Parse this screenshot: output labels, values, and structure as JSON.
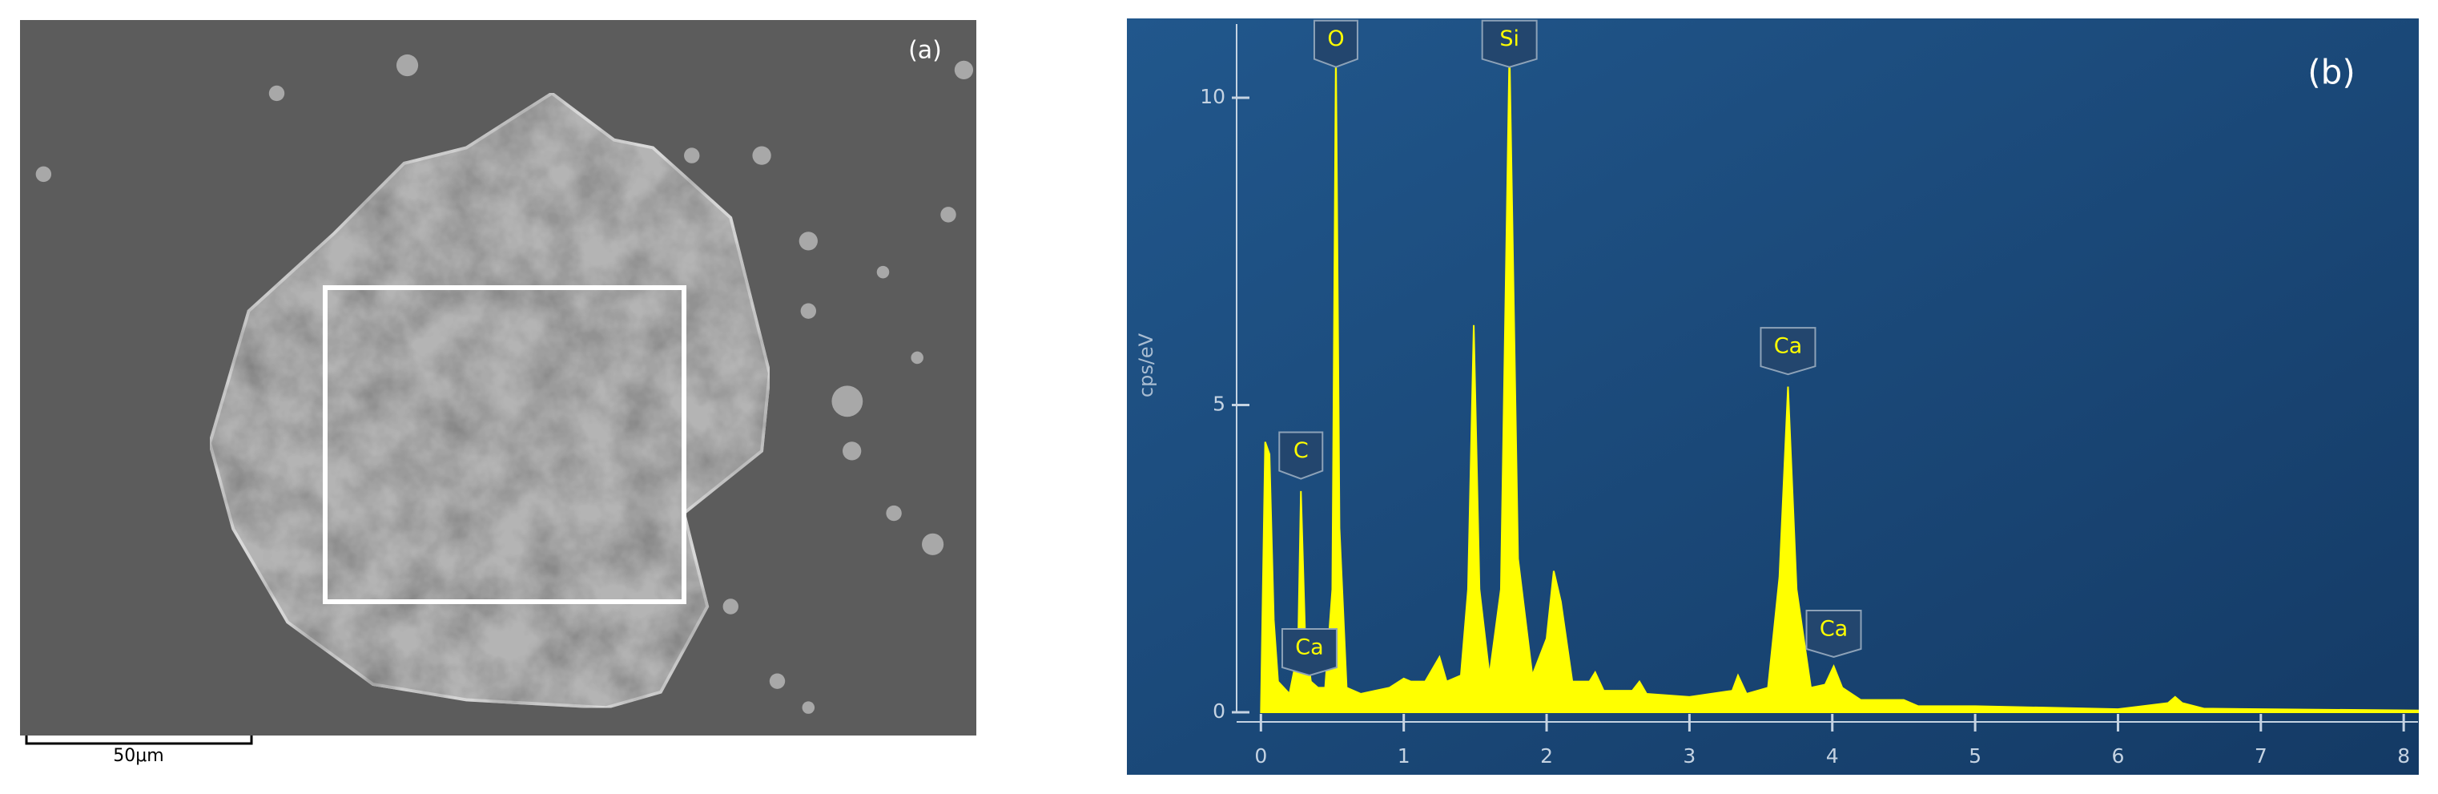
{
  "panel_a": {
    "label": "(a)",
    "scale_bar": "50μm"
  },
  "chart_data": {
    "type": "area",
    "panel_label": "(b)",
    "ylabel": "cps/eV",
    "color": "#ffff00",
    "xlim": [
      -0.17,
      8.1
    ],
    "ylim": [
      0,
      11.2
    ],
    "xticks": [
      0,
      1,
      2,
      3,
      4,
      5,
      6,
      7,
      8
    ],
    "yticks": [
      0,
      5,
      10
    ],
    "x": [
      0.0,
      0.03,
      0.06,
      0.09,
      0.12,
      0.2,
      0.26,
      0.28,
      0.31,
      0.35,
      0.4,
      0.45,
      0.5,
      0.525,
      0.55,
      0.6,
      0.7,
      0.8,
      0.9,
      1.0,
      1.05,
      1.15,
      1.25,
      1.3,
      1.4,
      1.45,
      1.49,
      1.53,
      1.6,
      1.68,
      1.74,
      1.8,
      1.9,
      2.0,
      2.05,
      2.1,
      2.18,
      2.3,
      2.34,
      2.4,
      2.6,
      2.65,
      2.7,
      3.0,
      3.3,
      3.34,
      3.4,
      3.55,
      3.63,
      3.69,
      3.75,
      3.85,
      3.95,
      4.01,
      4.07,
      4.2,
      4.5,
      4.6,
      5.0,
      6.0,
      6.35,
      6.4,
      6.45,
      6.6,
      7.0,
      8.1
    ],
    "values": [
      0,
      4.4,
      4.2,
      1.5,
      0.5,
      0.3,
      1.0,
      3.6,
      1.2,
      0.5,
      0.4,
      0.4,
      2.0,
      10.8,
      3.0,
      0.4,
      0.3,
      0.35,
      0.4,
      0.55,
      0.5,
      0.5,
      0.9,
      0.5,
      0.6,
      2,
      6.3,
      2,
      0.6,
      2,
      10.8,
      2.5,
      0.6,
      1.2,
      2.3,
      1.8,
      0.5,
      0.5,
      0.65,
      0.35,
      0.35,
      0.5,
      0.3,
      0.25,
      0.35,
      0.6,
      0.3,
      0.4,
      2.2,
      5.3,
      2.0,
      0.4,
      0.45,
      0.75,
      0.4,
      0.2,
      0.2,
      0.1,
      0.1,
      0.05,
      0.15,
      0.25,
      0.15,
      0.06,
      0.05,
      0.03
    ],
    "peaks": [
      {
        "label": "O",
        "x": 0.525,
        "y": 10.5
      },
      {
        "label": "Si",
        "x": 1.74,
        "y": 10.5
      },
      {
        "label": "C",
        "x": 0.28,
        "y": 3.8
      },
      {
        "label": "Ca",
        "x": 3.69,
        "y": 5.5
      },
      {
        "label": "Ca",
        "x": 4.01,
        "y": 0.9
      },
      {
        "label": "Ca",
        "x": 0.34,
        "y": 0.6
      }
    ]
  }
}
